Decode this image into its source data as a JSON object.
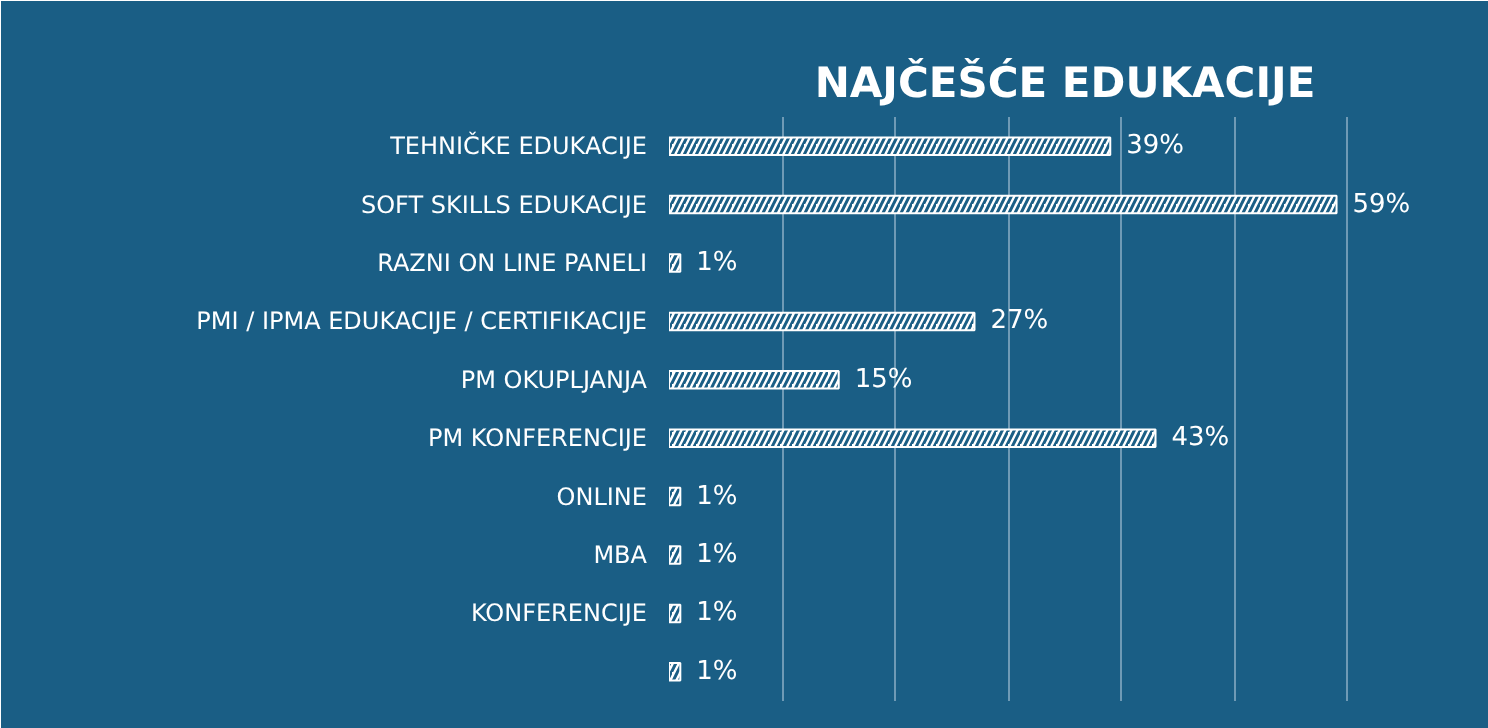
{
  "chart_data": {
    "type": "bar",
    "orientation": "horizontal",
    "title": "NAJČEŠĆE EDUKACIJE",
    "categories": [
      "TEHNIČKE EDUKACIJE",
      "SOFT SKILLS EDUKACIJE",
      "RAZNI ON LINE PANELI",
      "PMI / IPMA EDUKACIJE / CERTIFIKACIJE",
      "PM OKUPLJANJA",
      "PM KONFERENCIJE",
      "ONLINE",
      "MBA",
      "KONFERENCIJE",
      null
    ],
    "values": [
      39,
      59,
      1,
      27,
      15,
      43,
      1,
      1,
      1,
      1
    ],
    "value_labels": [
      "39%",
      "59%",
      "1%",
      "27%",
      "15%",
      "43%",
      "1%",
      "1%",
      "1%",
      "1%"
    ],
    "color": "#ffffff",
    "xlim": [
      0,
      70
    ],
    "xticks": [
      {
        "value": 0,
        "label": null
      },
      {
        "value": 10,
        "label": null
      },
      {
        "value": 20,
        "label": null
      },
      {
        "value": 30,
        "label": null
      },
      {
        "value": 40,
        "label": null
      },
      {
        "value": 50,
        "label": null
      },
      {
        "value": 60,
        "label": null
      },
      {
        "value": 70,
        "label": null
      }
    ],
    "grid": "x"
  }
}
